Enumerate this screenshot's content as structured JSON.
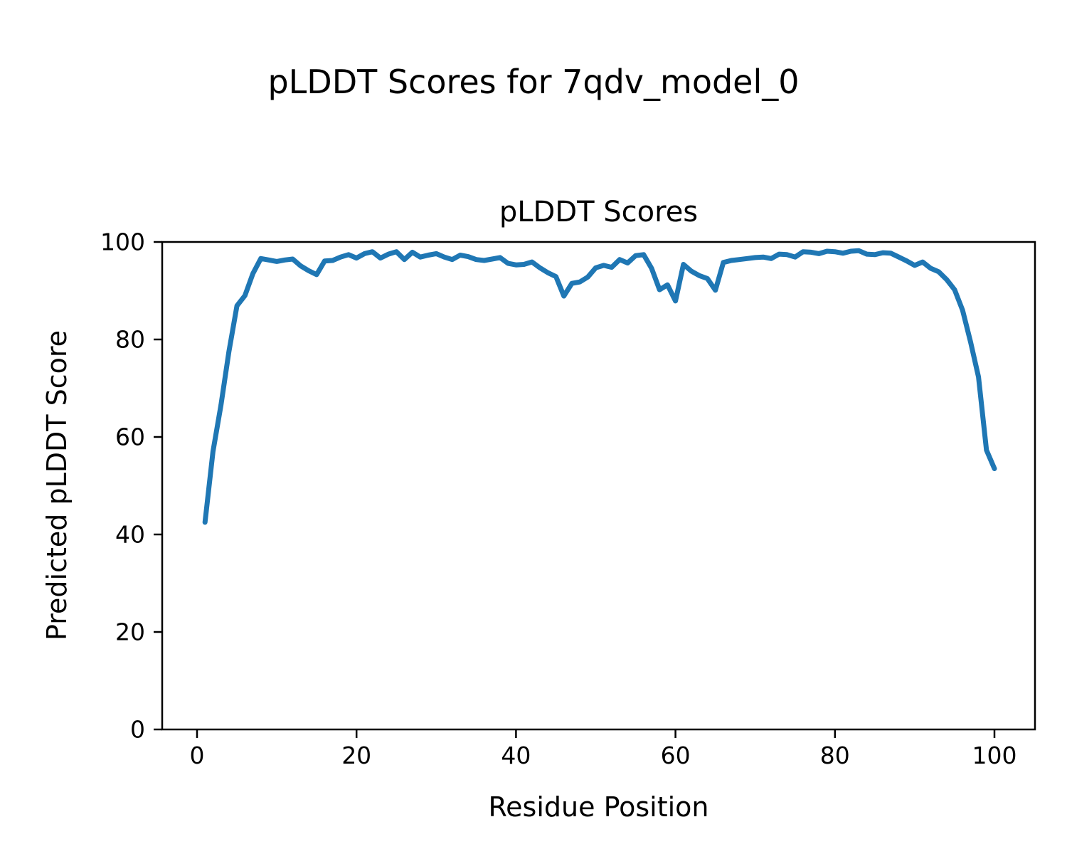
{
  "figure": {
    "suptitle": "pLDDT Scores for 7qdv_model_0"
  },
  "chart_data": {
    "type": "line",
    "title": "pLDDT Scores",
    "xlabel": "Residue Position",
    "ylabel": "Predicted pLDDT Score",
    "xlim": [
      0,
      100
    ],
    "ylim": [
      0,
      100
    ],
    "x_ticks": [
      0,
      20,
      40,
      60,
      80,
      100
    ],
    "y_ticks": [
      0,
      20,
      40,
      60,
      80,
      100
    ],
    "grid": false,
    "legend": "none",
    "line_color": "#1f77b4",
    "series": [
      {
        "name": "pLDDT",
        "x": [
          1,
          2,
          3,
          4,
          5,
          6,
          7,
          8,
          9,
          10,
          11,
          12,
          13,
          14,
          15,
          16,
          17,
          18,
          19,
          20,
          21,
          22,
          23,
          24,
          25,
          26,
          27,
          28,
          29,
          30,
          31,
          32,
          33,
          34,
          35,
          36,
          37,
          38,
          39,
          40,
          41,
          42,
          43,
          44,
          45,
          46,
          47,
          48,
          49,
          50,
          51,
          52,
          53,
          54,
          55,
          56,
          57,
          58,
          59,
          60,
          61,
          62,
          63,
          64,
          65,
          66,
          67,
          68,
          69,
          70,
          71,
          72,
          73,
          74,
          75,
          76,
          77,
          78,
          79,
          80,
          81,
          82,
          83,
          84,
          85,
          86,
          87,
          88,
          89,
          90,
          91,
          92,
          93,
          94,
          95,
          96,
          97,
          98,
          99,
          100
        ],
        "y": [
          42.5,
          57.0,
          66.5,
          77.5,
          86.9,
          89.0,
          93.5,
          96.6,
          96.3,
          96.0,
          96.3,
          96.5,
          95.1,
          94.1,
          93.3,
          96.1,
          96.2,
          96.9,
          97.4,
          96.7,
          97.6,
          98.0,
          96.7,
          97.5,
          98.0,
          96.4,
          97.9,
          96.9,
          97.3,
          97.6,
          96.9,
          96.4,
          97.3,
          97.0,
          96.4,
          96.2,
          96.5,
          96.8,
          95.6,
          95.3,
          95.4,
          95.9,
          94.7,
          93.7,
          92.9,
          88.9,
          91.5,
          91.8,
          92.8,
          94.7,
          95.2,
          94.8,
          96.4,
          95.7,
          97.2,
          97.4,
          94.6,
          90.2,
          91.2,
          87.9,
          95.4,
          94.0,
          93.1,
          92.5,
          90.1,
          95.8,
          96.2,
          96.4,
          96.6,
          96.8,
          96.9,
          96.6,
          97.5,
          97.4,
          96.9,
          98.0,
          97.9,
          97.6,
          98.1,
          98.0,
          97.7,
          98.1,
          98.2,
          97.5,
          97.4,
          97.8,
          97.7,
          96.9,
          96.1,
          95.2,
          95.9,
          94.6,
          93.9,
          92.3,
          90.2,
          86.0,
          79.5,
          72.3,
          57.3,
          53.5
        ]
      }
    ]
  }
}
